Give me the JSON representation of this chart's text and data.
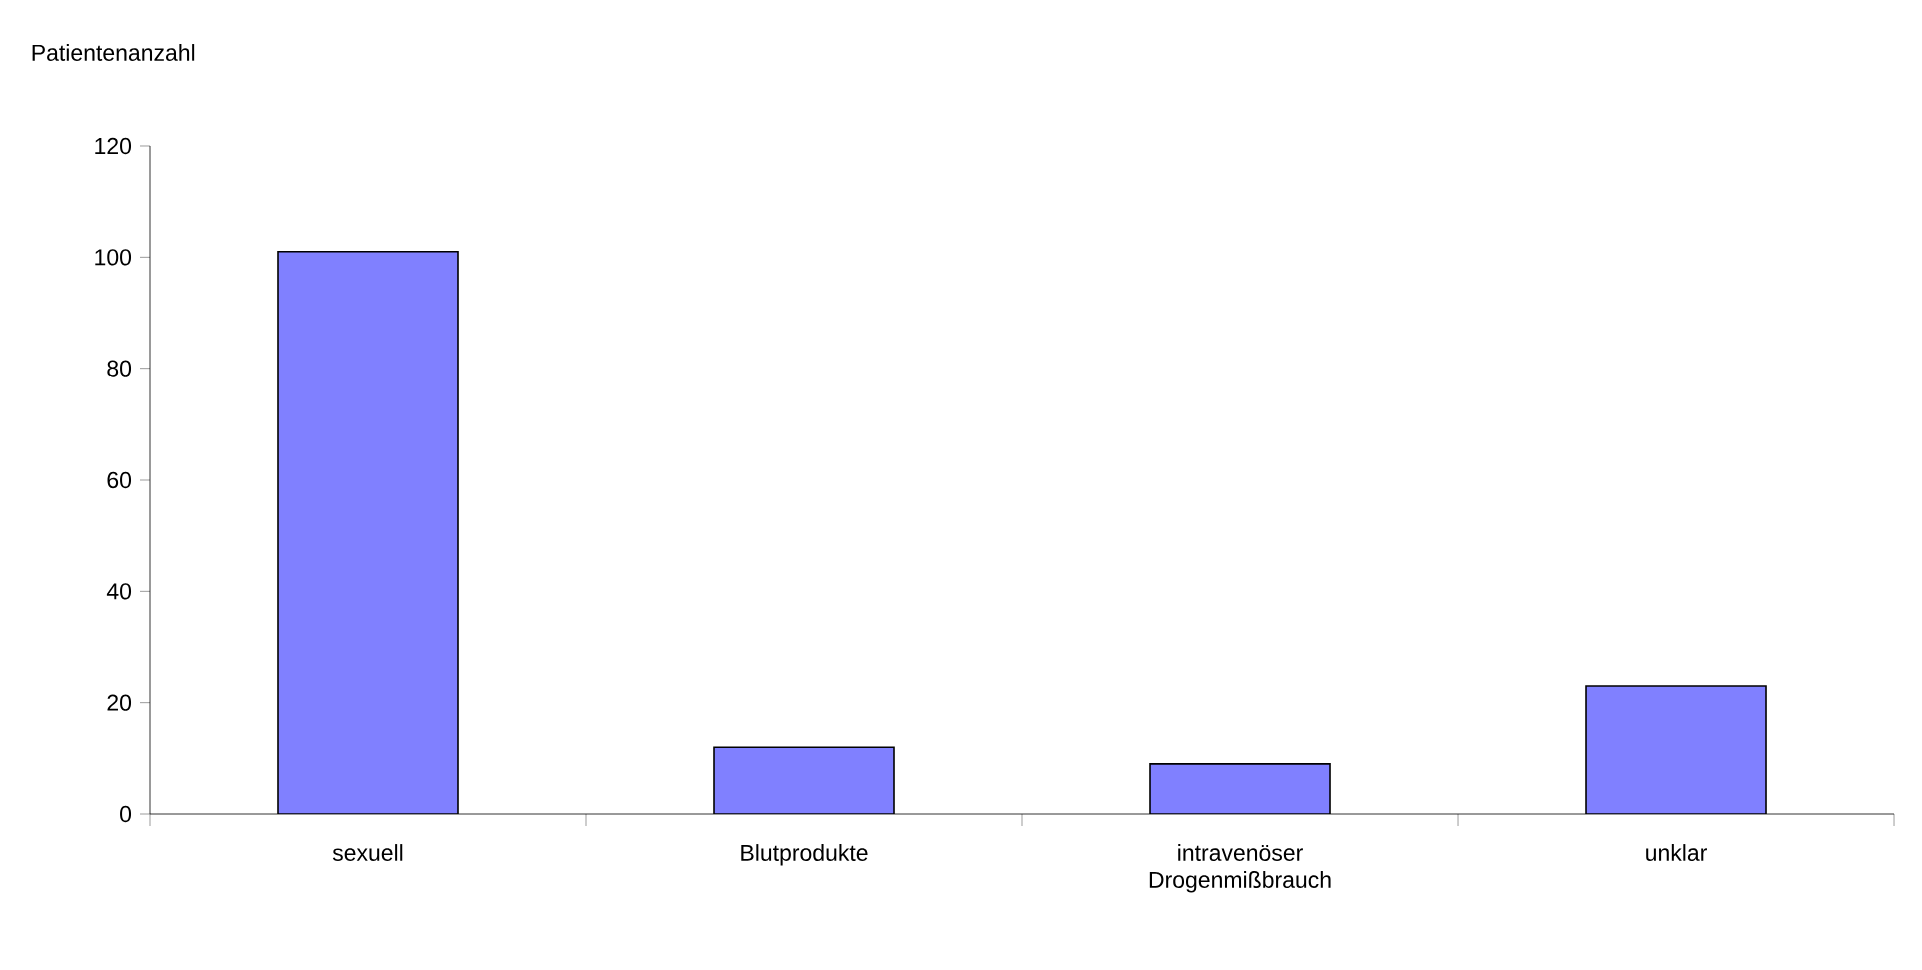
{
  "chart_data": {
    "type": "bar",
    "ylabel": "Patientenanzahl",
    "categories": [
      "sexuell",
      "Blutprodukte",
      "intravenöser Drogenmißbrauch",
      "unklar"
    ],
    "values": [
      101,
      12,
      9,
      23
    ],
    "color": "#8080ff",
    "ylim": [
      0,
      120
    ],
    "yticks": [
      0,
      20,
      40,
      60,
      80,
      100,
      120
    ]
  }
}
